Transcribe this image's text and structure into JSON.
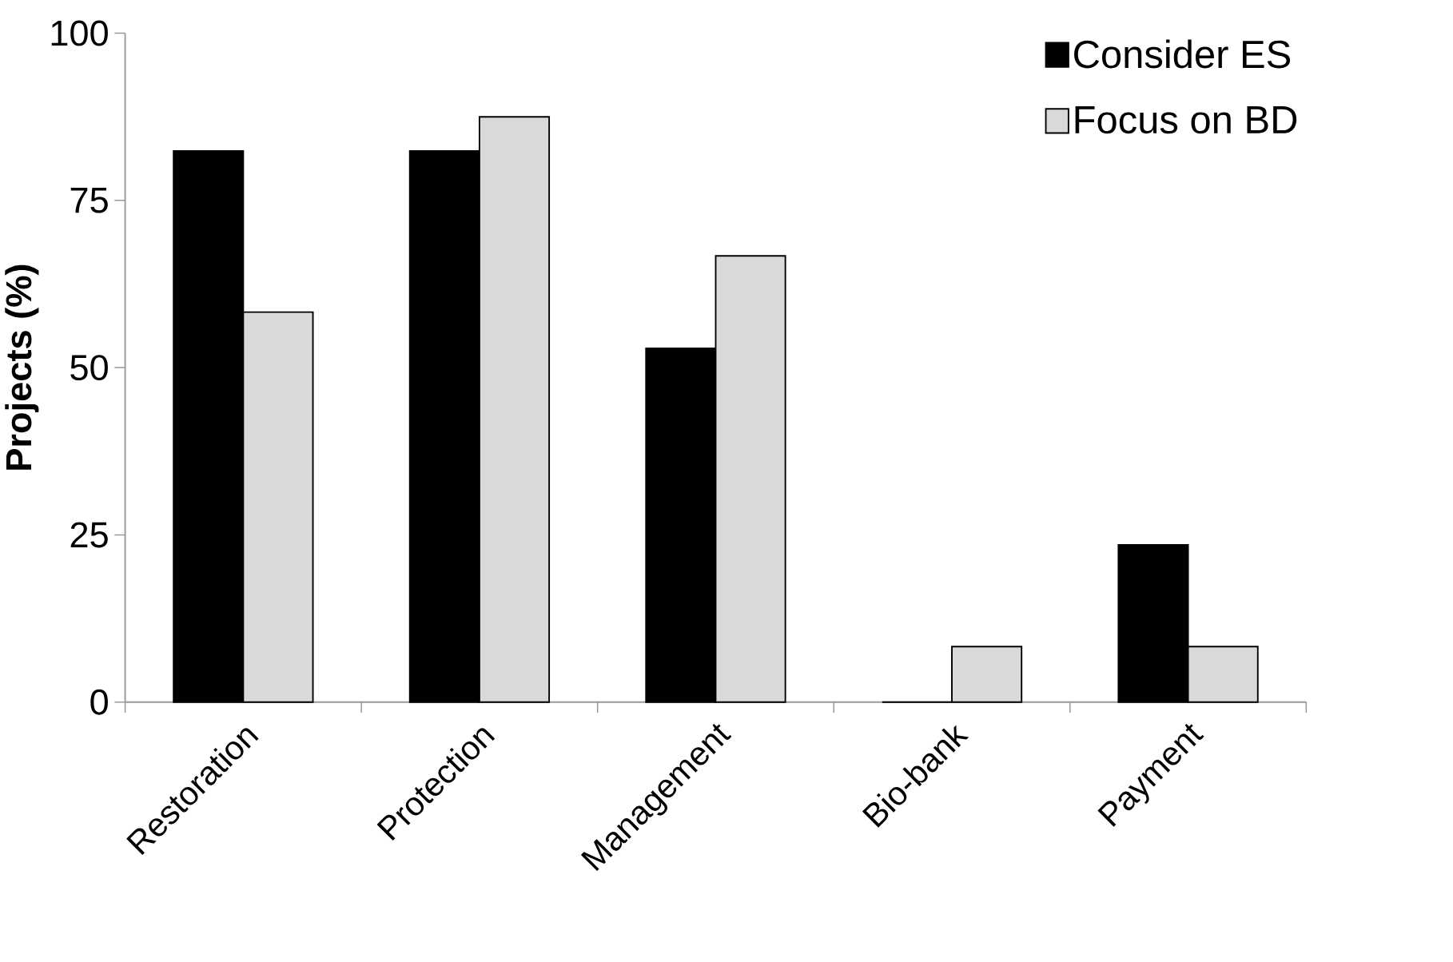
{
  "chart_data": {
    "type": "bar",
    "ylabel": "Projects (%)",
    "categories": [
      "Restoration",
      "Protection",
      "Management",
      "Bio-bank",
      "Payment"
    ],
    "series": [
      {
        "name": "Consider ES",
        "color": "#000000",
        "values": [
          82.4,
          82.4,
          52.9,
          0,
          23.5
        ]
      },
      {
        "name": "Focus on BD",
        "color": "#d9d9d9",
        "values": [
          58.3,
          87.5,
          66.7,
          8.3,
          8.3
        ]
      }
    ],
    "ylim": [
      0,
      100
    ],
    "yticks": [
      0,
      25,
      50,
      75,
      100
    ],
    "grid": false,
    "legend": "top right"
  }
}
